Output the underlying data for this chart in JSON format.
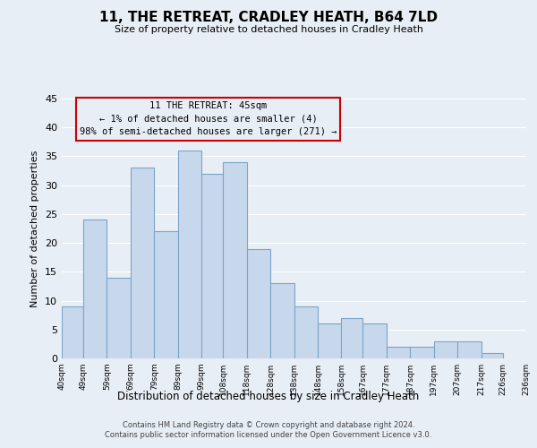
{
  "title": "11, THE RETREAT, CRADLEY HEATH, B64 7LD",
  "subtitle": "Size of property relative to detached houses in Cradley Heath",
  "xlabel": "Distribution of detached houses by size in Cradley Heath",
  "ylabel": "Number of detached properties",
  "bar_heights": [
    9,
    24,
    14,
    33,
    22,
    36,
    32,
    34,
    19,
    13,
    9,
    6,
    7,
    6,
    2,
    2,
    3,
    3,
    1
  ],
  "bar_left_edges": [
    40,
    49,
    59,
    69,
    79,
    89,
    99,
    108,
    118,
    128,
    138,
    148,
    158,
    167,
    177,
    187,
    197,
    207,
    217
  ],
  "bar_right_edges": [
    49,
    59,
    69,
    79,
    89,
    99,
    108,
    118,
    128,
    138,
    148,
    158,
    167,
    177,
    187,
    197,
    207,
    217,
    226
  ],
  "x_tick_labels": [
    "40sqm",
    "49sqm",
    "59sqm",
    "69sqm",
    "79sqm",
    "89sqm",
    "99sqm",
    "108sqm",
    "118sqm",
    "128sqm",
    "138sqm",
    "148sqm",
    "158sqm",
    "167sqm",
    "177sqm",
    "187sqm",
    "197sqm",
    "207sqm",
    "217sqm",
    "226sqm",
    "236sqm"
  ],
  "x_tick_positions": [
    40,
    49,
    59,
    69,
    79,
    89,
    99,
    108,
    118,
    128,
    138,
    148,
    158,
    167,
    177,
    187,
    197,
    207,
    217,
    226,
    236
  ],
  "ylim": [
    0,
    45
  ],
  "yticks": [
    0,
    5,
    10,
    15,
    20,
    25,
    30,
    35,
    40,
    45
  ],
  "bar_facecolor": "#c8d8ec",
  "bar_edgecolor": "#7ba4c7",
  "annotation_line1": "11 THE RETREAT: 45sqm",
  "annotation_line2": "← 1% of detached houses are smaller (4)",
  "annotation_line3": "98% of semi-detached houses are larger (271) →",
  "annotation_box_edgecolor": "#cc0000",
  "annotation_box_facecolor": "#e8eef5",
  "footer_text": "Contains HM Land Registry data © Crown copyright and database right 2024.\nContains public sector information licensed under the Open Government Licence v3.0.",
  "grid_color": "#ffffff",
  "background_color": "#e8eef5",
  "xlim_left": 40,
  "xlim_right": 236
}
